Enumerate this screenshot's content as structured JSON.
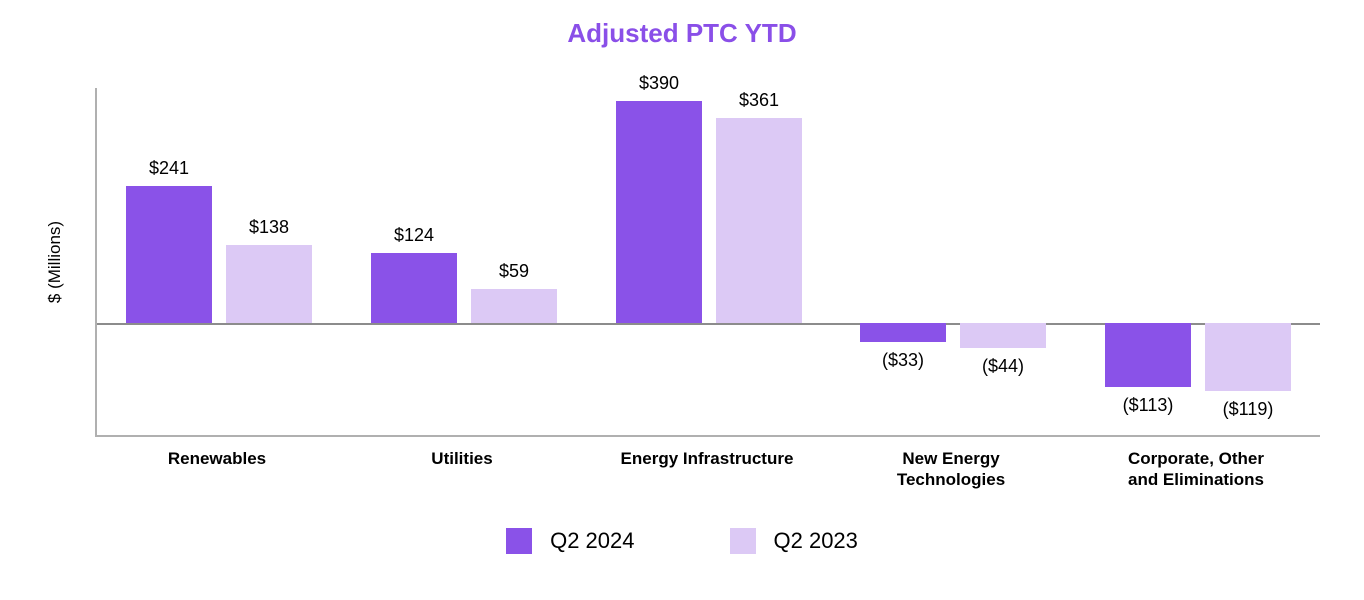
{
  "chart_data": {
    "type": "bar",
    "title": "Adjusted PTC YTD",
    "ylabel": "$ (Millions)",
    "xlabel": "",
    "grid": false,
    "legend_position": "bottom",
    "ylim": [
      -170,
      440
    ],
    "categories": [
      "Renewables",
      "Utilities",
      "Energy Infrastructure",
      "New Energy\nTechnologies",
      "Corporate, Other\nand Eliminations"
    ],
    "series": [
      {
        "name": "Q2 2024",
        "color": "#8a52e8",
        "values": [
          241,
          124,
          390,
          -33,
          -113
        ],
        "labels": [
          "$241",
          "$124",
          "$390",
          "($33)",
          "($113)"
        ]
      },
      {
        "name": "Q2 2023",
        "color": "#dcc9f5",
        "values": [
          138,
          59,
          361,
          -44,
          -119
        ],
        "labels": [
          "$138",
          "$59",
          "$361",
          "($44)",
          "($119)"
        ]
      }
    ]
  },
  "colors": {
    "title": "#8a4fe8",
    "axis": "#b0b0b0",
    "zero_line": "#8c8c8c",
    "text": "#000000"
  }
}
